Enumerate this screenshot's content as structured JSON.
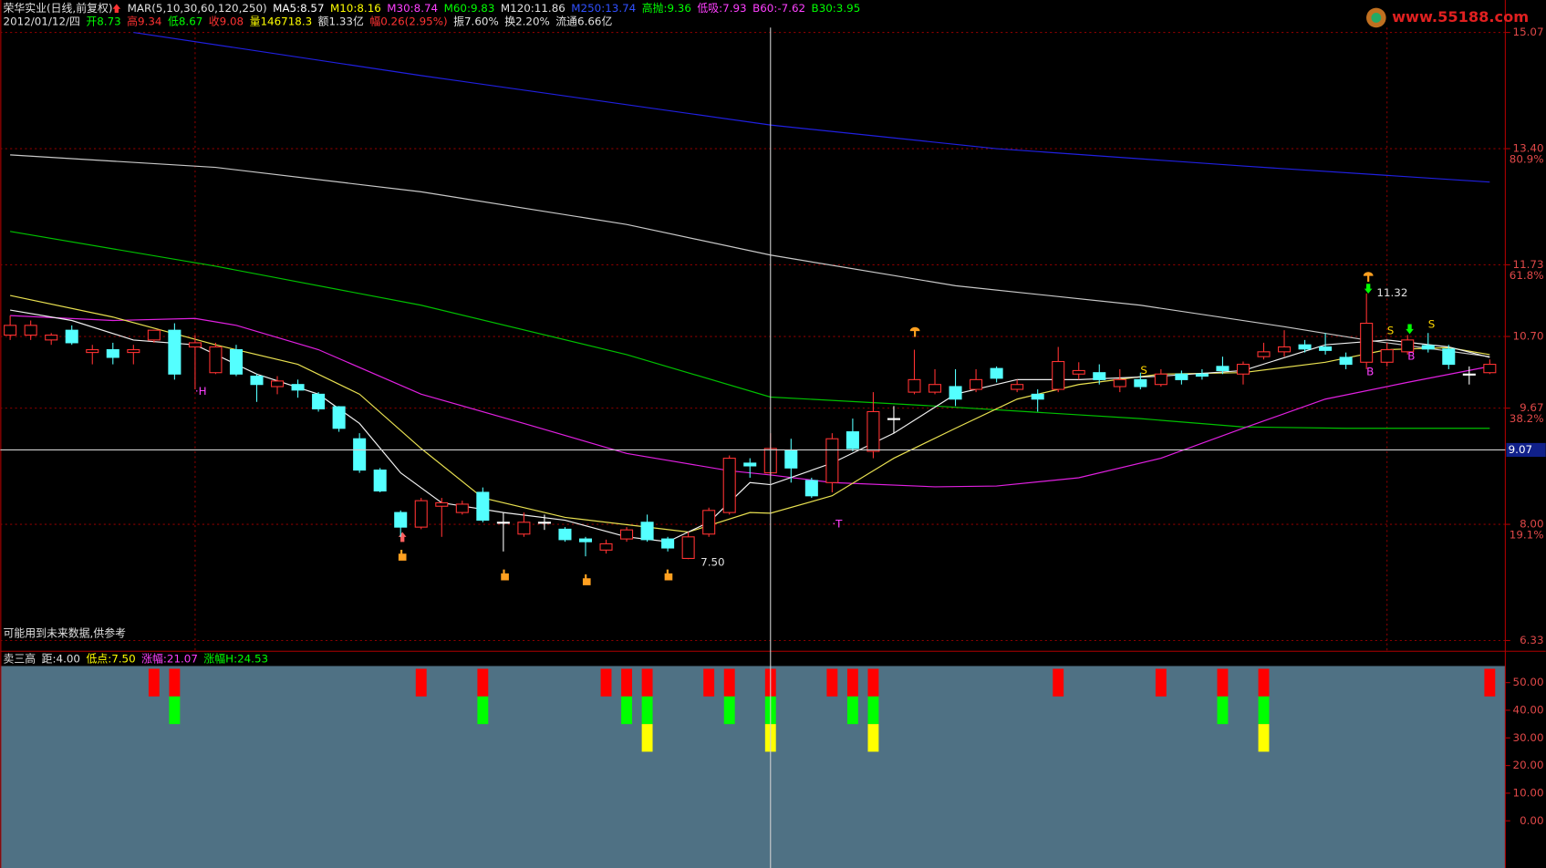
{
  "chart_data": [
    {
      "type": "candlestick",
      "title": "荣华实业(日线,前复权)",
      "watermark": "www.55188.com",
      "note": "可能用到未来数据,供参考",
      "header": [
        {
          "text": "MAR(5,10,30,60,120,250)",
          "color": "#e0e0e0"
        },
        {
          "text": "MA5:8.57",
          "color": "#ffffff"
        },
        {
          "text": "M10:8.16",
          "color": "#ffff00"
        },
        {
          "text": "M30:8.74",
          "color": "#ff40ff"
        },
        {
          "text": "M60:9.83",
          "color": "#00ff00"
        },
        {
          "text": "M120:11.86",
          "color": "#e0e0e0"
        },
        {
          "text": "M250:13.74",
          "color": "#3050ff"
        },
        {
          "text": "高抛:9.36",
          "color": "#00ff00"
        },
        {
          "text": "低吸:7.93",
          "color": "#ff40ff"
        },
        {
          "text": "B60:-7.62",
          "color": "#ff40ff"
        },
        {
          "text": "B30:3.95",
          "color": "#00ff00"
        }
      ],
      "info": [
        {
          "text": "2012/01/12/四",
          "color": "#e0e0e0"
        },
        {
          "text": "开8.73",
          "color": "#00ff00"
        },
        {
          "text": "高9.34",
          "color": "#ff3232"
        },
        {
          "text": "低8.67",
          "color": "#00ff00"
        },
        {
          "text": "收9.08",
          "color": "#ff3232"
        },
        {
          "text": "量146718.3",
          "color": "#ffff00"
        },
        {
          "text": "额1.33亿",
          "color": "#e0e0e0"
        },
        {
          "text": "幅0.26(2.95%)",
          "color": "#ff3232"
        },
        {
          "text": "振7.60%",
          "color": "#e0e0e0"
        },
        {
          "text": "换2.20%",
          "color": "#e0e0e0"
        },
        {
          "text": "流通6.66亿",
          "color": "#e0e0e0"
        }
      ],
      "xlim": [
        -0.48,
        72.66
      ],
      "ylim": [
        6.19,
        15.14
      ],
      "yticks": [
        {
          "value": 15.07,
          "label": "15.07"
        },
        {
          "value": 13.4,
          "label": "13.40"
        },
        {
          "value": 11.73,
          "label": "11.73"
        },
        {
          "value": 10.7,
          "label": "10.70"
        },
        {
          "value": 9.67,
          "label": "9.67"
        },
        {
          "value": 8.0,
          "label": "8.00"
        },
        {
          "value": 6.33,
          "label": "6.33"
        }
      ],
      "ytick_notes": [
        null,
        "80.9%",
        "61.8%",
        null,
        "38.2%",
        "19.1%",
        null
      ],
      "xgrid": [
        9,
        67
      ],
      "grid": true,
      "up_color": "#ff3232",
      "down_color": "#54ffff",
      "doji_color": "#ffffff",
      "crosshair": {
        "index": 37,
        "price": 9.07
      },
      "ohlc": [
        [
          10.72,
          11.0,
          10.65,
          10.86
        ],
        [
          10.72,
          10.93,
          10.65,
          10.86
        ],
        [
          10.65,
          10.75,
          10.58,
          10.72
        ],
        [
          10.79,
          10.86,
          10.58,
          10.61
        ],
        [
          10.47,
          10.58,
          10.3,
          10.51
        ],
        [
          10.51,
          10.61,
          10.3,
          10.4
        ],
        [
          10.47,
          10.58,
          10.3,
          10.51
        ],
        [
          10.65,
          10.79,
          10.61,
          10.79
        ],
        [
          10.79,
          10.89,
          10.08,
          10.16
        ],
        [
          10.55,
          10.72,
          9.94,
          10.61
        ],
        [
          10.18,
          10.61,
          10.16,
          10.55
        ],
        [
          10.51,
          10.58,
          10.13,
          10.16
        ],
        [
          10.13,
          10.16,
          9.76,
          10.01
        ],
        [
          9.98,
          10.13,
          9.87,
          10.06
        ],
        [
          10.01,
          10.08,
          9.82,
          9.93
        ],
        [
          9.87,
          9.9,
          9.62,
          9.66
        ],
        [
          9.69,
          9.7,
          9.33,
          9.38
        ],
        [
          9.23,
          9.31,
          8.74,
          8.78
        ],
        [
          8.78,
          8.81,
          8.46,
          8.48
        ],
        [
          8.17,
          8.2,
          7.82,
          7.96
        ],
        [
          7.96,
          8.38,
          7.93,
          8.34
        ],
        [
          8.26,
          8.38,
          7.82,
          8.31
        ],
        [
          8.17,
          8.34,
          8.14,
          8.29
        ],
        [
          8.46,
          8.53,
          8.03,
          8.06
        ],
        [
          8.03,
          8.17,
          7.61,
          8.03
        ],
        [
          7.86,
          8.17,
          7.82,
          8.03
        ],
        [
          8.03,
          8.14,
          7.92,
          8.03
        ],
        [
          7.93,
          7.96,
          7.75,
          7.78
        ],
        [
          7.79,
          7.82,
          7.54,
          7.75
        ],
        [
          7.63,
          7.78,
          7.58,
          7.72
        ],
        [
          7.79,
          7.96,
          7.75,
          7.92
        ],
        [
          8.03,
          8.14,
          7.75,
          7.78
        ],
        [
          7.79,
          7.82,
          7.61,
          7.66
        ],
        [
          7.51,
          7.89,
          7.5,
          7.82
        ],
        [
          7.86,
          8.24,
          7.82,
          8.2
        ],
        [
          8.17,
          8.99,
          8.14,
          8.95
        ],
        [
          8.88,
          8.95,
          8.67,
          8.84
        ],
        [
          8.74,
          9.31,
          8.71,
          9.09
        ],
        [
          9.06,
          9.23,
          8.6,
          8.81
        ],
        [
          8.63,
          8.67,
          8.38,
          8.41
        ],
        [
          8.6,
          9.31,
          8.46,
          9.23
        ],
        [
          9.33,
          9.52,
          9.05,
          9.09
        ],
        [
          9.05,
          9.9,
          8.95,
          9.62
        ],
        [
          9.52,
          9.7,
          9.31,
          9.52
        ],
        [
          9.9,
          10.51,
          9.87,
          10.08
        ],
        [
          9.9,
          10.23,
          9.87,
          10.01
        ],
        [
          9.98,
          10.23,
          9.7,
          9.8
        ],
        [
          9.94,
          10.23,
          9.9,
          10.08
        ],
        [
          10.24,
          10.27,
          10.04,
          10.1
        ],
        [
          9.94,
          10.08,
          9.9,
          10.01
        ],
        [
          9.87,
          9.94,
          9.62,
          9.8
        ],
        [
          9.94,
          10.55,
          9.9,
          10.34
        ],
        [
          10.16,
          10.33,
          10.08,
          10.21
        ],
        [
          10.18,
          10.3,
          10.01,
          10.08
        ],
        [
          9.98,
          10.23,
          9.9,
          10.08
        ],
        [
          10.08,
          10.18,
          9.94,
          9.98
        ],
        [
          10.01,
          10.23,
          9.98,
          10.16
        ],
        [
          10.16,
          10.21,
          10.01,
          10.08
        ],
        [
          10.16,
          10.23,
          10.08,
          10.13
        ],
        [
          10.27,
          10.41,
          10.16,
          10.21
        ],
        [
          10.16,
          10.34,
          10.01,
          10.3
        ],
        [
          10.41,
          10.61,
          10.37,
          10.48
        ],
        [
          10.48,
          10.79,
          10.41,
          10.55
        ],
        [
          10.58,
          10.65,
          10.47,
          10.52
        ],
        [
          10.55,
          10.75,
          10.44,
          10.5
        ],
        [
          10.4,
          10.47,
          10.23,
          10.3
        ],
        [
          10.33,
          11.32,
          10.23,
          10.89
        ],
        [
          10.33,
          10.61,
          10.27,
          10.51
        ],
        [
          10.48,
          10.72,
          10.44,
          10.65
        ],
        [
          10.57,
          10.75,
          10.47,
          10.52
        ],
        [
          10.52,
          10.58,
          10.23,
          10.3
        ],
        [
          10.16,
          10.27,
          10.01,
          10.16
        ],
        [
          10.18,
          10.37,
          10.16,
          10.3
        ]
      ],
      "series": [
        {
          "color": "#2020e0",
          "x": [
            6,
            20,
            37,
            48,
            60,
            72
          ],
          "values": [
            15.07,
            14.45,
            13.74,
            13.4,
            13.15,
            12.92
          ]
        },
        {
          "color": "#c8c8c8",
          "x": [
            0,
            10,
            20,
            30,
            37,
            46,
            55,
            62,
            66,
            72
          ],
          "values": [
            13.31,
            13.13,
            12.78,
            12.31,
            11.87,
            11.43,
            11.15,
            10.84,
            10.65,
            10.41
          ]
        },
        {
          "color": "#00c000",
          "x": [
            0,
            10,
            20,
            30,
            37,
            45,
            55,
            60,
            65,
            72
          ],
          "values": [
            12.21,
            11.71,
            11.15,
            10.44,
            9.83,
            9.7,
            9.52,
            9.4,
            9.38,
            9.38
          ]
        },
        {
          "color": "#e020e0",
          "x": [
            0,
            5,
            9,
            11,
            15,
            20,
            25,
            30,
            35,
            37,
            40,
            45,
            48,
            52,
            56,
            60,
            64,
            68,
            72
          ],
          "values": [
            11.0,
            10.93,
            10.96,
            10.86,
            10.51,
            9.87,
            9.45,
            9.02,
            8.77,
            8.71,
            8.6,
            8.54,
            8.55,
            8.67,
            8.95,
            9.38,
            9.8,
            10.04,
            10.27
          ]
        },
        {
          "color": "#e8e050",
          "x": [
            0,
            5,
            10,
            14,
            17,
            20,
            23,
            27,
            31,
            33,
            36,
            37,
            40,
            43,
            46,
            49,
            52,
            56,
            60,
            64,
            67,
            70,
            72
          ],
          "values": [
            11.29,
            10.98,
            10.58,
            10.3,
            9.87,
            9.09,
            8.38,
            8.1,
            7.96,
            7.89,
            8.17,
            8.16,
            8.41,
            8.95,
            9.38,
            9.8,
            10.01,
            10.16,
            10.18,
            10.33,
            10.51,
            10.54,
            10.44
          ]
        },
        {
          "color": "#f0f0f0",
          "x": [
            0,
            3,
            6,
            9,
            12,
            15,
            17,
            19,
            21,
            24,
            27,
            30,
            32,
            34,
            36,
            37,
            40,
            43,
            46,
            49,
            52,
            56,
            60,
            64,
            67,
            70,
            72
          ],
          "values": [
            11.08,
            10.93,
            10.65,
            10.58,
            10.16,
            9.87,
            9.45,
            8.74,
            8.31,
            8.17,
            8.06,
            7.82,
            7.75,
            8.03,
            8.6,
            8.57,
            8.88,
            9.31,
            9.87,
            10.08,
            10.08,
            10.13,
            10.21,
            10.58,
            10.65,
            10.55,
            10.4
          ]
        }
      ],
      "annotations": [
        {
          "text": "·H",
          "index": 9,
          "price": 9.91,
          "color": "#ff40ff"
        },
        {
          "text": "·T",
          "index": 40,
          "price": 8.0,
          "color": "#ff40ff"
        },
        {
          "text": "7.50",
          "index": 33.6,
          "price": 7.45,
          "color": "#e0e0e0"
        },
        {
          "text": "11.32",
          "index": 66.5,
          "price": 11.32,
          "color": "#e0e0e0"
        },
        {
          "text": "B",
          "index": 66,
          "price": 10.19,
          "color": "#ff40ff"
        },
        {
          "text": "B",
          "index": 68,
          "price": 10.41,
          "color": "#ff40ff"
        },
        {
          "text": "S",
          "index": 55,
          "price": 10.21,
          "color": "#ffd700"
        },
        {
          "text": "S",
          "index": 67,
          "price": 10.78,
          "color": "#ffd700"
        },
        {
          "text": "S",
          "index": 69,
          "price": 10.87,
          "color": "#ffd700"
        }
      ]
    },
    {
      "type": "bar",
      "header": [
        {
          "text": "卖三高",
          "color": "#e0e0e0"
        },
        {
          "text": "距:4.00",
          "color": "#e0e0e0"
        },
        {
          "text": "低点:7.50",
          "color": "#ffff00"
        },
        {
          "text": "涨幅:21.07",
          "color": "#ff40ff"
        },
        {
          "text": "涨幅H:24.53",
          "color": "#00ff00"
        }
      ],
      "ylim": [
        -16,
        56
      ],
      "yticks": [
        {
          "value": 50,
          "label": "50.00"
        },
        {
          "value": 40,
          "label": "40.00"
        },
        {
          "value": 30,
          "label": "30.00"
        },
        {
          "value": 20,
          "label": "20.00"
        },
        {
          "value": 10,
          "label": "10.00"
        },
        {
          "value": 0,
          "label": "0.00"
        }
      ],
      "bars": [
        {
          "color": "#ff0000",
          "range": [
            45,
            55
          ],
          "indices": [
            7,
            8,
            20,
            23,
            29,
            30,
            31,
            34,
            35,
            37,
            40,
            41,
            42,
            51,
            56,
            59,
            61,
            72
          ]
        },
        {
          "color": "#00ff00",
          "range": [
            35,
            45
          ],
          "indices": [
            8,
            23,
            30,
            31,
            35,
            37,
            41,
            42,
            59,
            61
          ]
        },
        {
          "color": "#ffff00",
          "range": [
            25,
            35
          ],
          "indices": [
            31,
            37,
            42,
            61
          ]
        }
      ]
    }
  ]
}
